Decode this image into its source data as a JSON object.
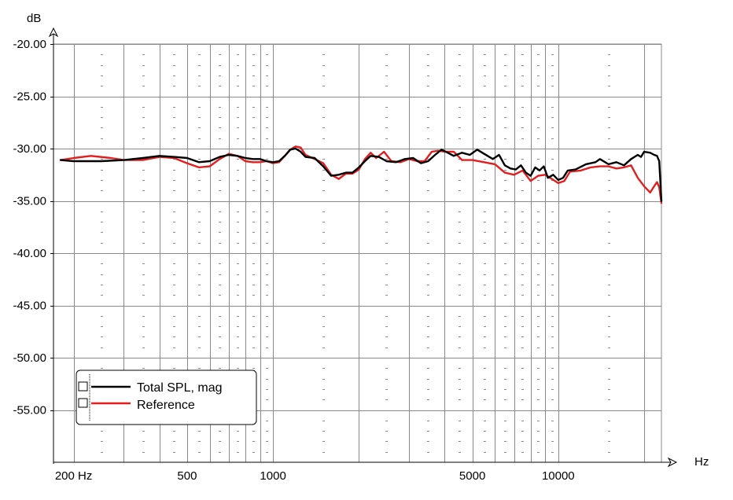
{
  "chart_data": {
    "type": "line",
    "xscale": "log",
    "xlim": [
      170,
      23000
    ],
    "ylim": [
      -60,
      -20
    ],
    "ylabel": "dB",
    "xlabel": "Hz",
    "y_ticks": [
      {
        "value": -20,
        "label": "-20.00"
      },
      {
        "value": -25,
        "label": "-25.00"
      },
      {
        "value": -30,
        "label": "-30.00"
      },
      {
        "value": -35,
        "label": "-35.00"
      },
      {
        "value": -40,
        "label": "-40.00"
      },
      {
        "value": -45,
        "label": "-45.00"
      },
      {
        "value": -50,
        "label": "-50.00"
      },
      {
        "value": -55,
        "label": "-55.00"
      }
    ],
    "x_tick_labels": [
      {
        "value": 200,
        "label": "200 Hz"
      },
      {
        "value": 500,
        "label": "500"
      },
      {
        "value": 1000,
        "label": "1000"
      },
      {
        "value": 5000,
        "label": "5000"
      },
      {
        "value": 10000,
        "label": "10000"
      }
    ],
    "x_gridlines": [
      200,
      300,
      400,
      500,
      600,
      700,
      800,
      900,
      1000,
      2000,
      3000,
      4000,
      5000,
      6000,
      7000,
      8000,
      9000,
      10000,
      20000
    ],
    "grid": true,
    "legend_position": "bottom-left",
    "series": [
      {
        "name": "Total SPL, mag",
        "color": "#000000",
        "points": [
          [
            180,
            -31.1
          ],
          [
            200,
            -31.2
          ],
          [
            250,
            -31.2
          ],
          [
            300,
            -31.1
          ],
          [
            350,
            -30.9
          ],
          [
            400,
            -30.7
          ],
          [
            450,
            -30.8
          ],
          [
            500,
            -30.9
          ],
          [
            550,
            -31.3
          ],
          [
            600,
            -31.2
          ],
          [
            650,
            -30.8
          ],
          [
            700,
            -30.6
          ],
          [
            750,
            -30.7
          ],
          [
            800,
            -30.9
          ],
          [
            850,
            -31.0
          ],
          [
            900,
            -31.0
          ],
          [
            950,
            -31.2
          ],
          [
            1000,
            -31.3
          ],
          [
            1050,
            -31.2
          ],
          [
            1100,
            -30.7
          ],
          [
            1150,
            -30.1
          ],
          [
            1200,
            -30.0
          ],
          [
            1250,
            -30.3
          ],
          [
            1300,
            -30.8
          ],
          [
            1400,
            -30.9
          ],
          [
            1500,
            -31.7
          ],
          [
            1600,
            -32.6
          ],
          [
            1700,
            -32.5
          ],
          [
            1800,
            -32.3
          ],
          [
            1900,
            -32.3
          ],
          [
            2000,
            -31.8
          ],
          [
            2100,
            -31.2
          ],
          [
            2200,
            -30.7
          ],
          [
            2350,
            -30.8
          ],
          [
            2500,
            -31.2
          ],
          [
            2700,
            -31.3
          ],
          [
            2900,
            -31.0
          ],
          [
            3100,
            -30.9
          ],
          [
            3300,
            -31.4
          ],
          [
            3500,
            -31.2
          ],
          [
            3700,
            -30.6
          ],
          [
            3900,
            -30.1
          ],
          [
            4100,
            -30.4
          ],
          [
            4300,
            -30.7
          ],
          [
            4600,
            -30.4
          ],
          [
            4900,
            -30.6
          ],
          [
            5200,
            -30.1
          ],
          [
            5500,
            -30.5
          ],
          [
            5900,
            -31.0
          ],
          [
            6200,
            -30.6
          ],
          [
            6500,
            -31.6
          ],
          [
            6800,
            -31.9
          ],
          [
            7100,
            -32.0
          ],
          [
            7400,
            -31.6
          ],
          [
            7700,
            -32.3
          ],
          [
            8000,
            -32.6
          ],
          [
            8300,
            -31.8
          ],
          [
            8600,
            -32.1
          ],
          [
            8900,
            -31.7
          ],
          [
            9200,
            -32.8
          ],
          [
            9600,
            -32.5
          ],
          [
            10000,
            -33.0
          ],
          [
            10400,
            -32.8
          ],
          [
            10800,
            -32.1
          ],
          [
            11500,
            -32.0
          ],
          [
            12500,
            -31.5
          ],
          [
            13500,
            -31.3
          ],
          [
            14000,
            -31.0
          ],
          [
            15000,
            -31.5
          ],
          [
            16000,
            -31.3
          ],
          [
            17000,
            -31.6
          ],
          [
            18000,
            -31.0
          ],
          [
            19000,
            -30.6
          ],
          [
            19500,
            -30.8
          ],
          [
            20000,
            -30.3
          ],
          [
            21000,
            -30.4
          ],
          [
            21700,
            -30.6
          ],
          [
            22200,
            -30.7
          ],
          [
            22600,
            -31.2
          ],
          [
            23000,
            -35.0
          ]
        ]
      },
      {
        "name": "Reference",
        "color": "#e41e1e",
        "points": [
          [
            180,
            -31.1
          ],
          [
            200,
            -30.9
          ],
          [
            230,
            -30.7
          ],
          [
            270,
            -30.9
          ],
          [
            300,
            -31.1
          ],
          [
            350,
            -31.1
          ],
          [
            400,
            -30.8
          ],
          [
            450,
            -30.9
          ],
          [
            500,
            -31.4
          ],
          [
            550,
            -31.8
          ],
          [
            600,
            -31.7
          ],
          [
            650,
            -31.0
          ],
          [
            700,
            -30.5
          ],
          [
            750,
            -30.7
          ],
          [
            800,
            -31.2
          ],
          [
            850,
            -31.3
          ],
          [
            900,
            -31.3
          ],
          [
            950,
            -31.2
          ],
          [
            1000,
            -31.4
          ],
          [
            1050,
            -31.3
          ],
          [
            1100,
            -30.7
          ],
          [
            1150,
            -30.1
          ],
          [
            1200,
            -29.8
          ],
          [
            1250,
            -29.9
          ],
          [
            1300,
            -30.6
          ],
          [
            1400,
            -31.0
          ],
          [
            1500,
            -31.4
          ],
          [
            1600,
            -32.5
          ],
          [
            1700,
            -32.9
          ],
          [
            1800,
            -32.4
          ],
          [
            1900,
            -32.4
          ],
          [
            2000,
            -32.0
          ],
          [
            2100,
            -31.0
          ],
          [
            2200,
            -30.4
          ],
          [
            2300,
            -30.9
          ],
          [
            2450,
            -30.3
          ],
          [
            2600,
            -31.2
          ],
          [
            2800,
            -31.3
          ],
          [
            3000,
            -31.0
          ],
          [
            3200,
            -31.2
          ],
          [
            3400,
            -31.2
          ],
          [
            3600,
            -30.3
          ],
          [
            3800,
            -30.2
          ],
          [
            4000,
            -30.3
          ],
          [
            4300,
            -30.3
          ],
          [
            4600,
            -31.1
          ],
          [
            5000,
            -31.1
          ],
          [
            5500,
            -31.3
          ],
          [
            6000,
            -31.5
          ],
          [
            6500,
            -32.3
          ],
          [
            7000,
            -32.5
          ],
          [
            7500,
            -32.1
          ],
          [
            8000,
            -33.1
          ],
          [
            8500,
            -32.6
          ],
          [
            9000,
            -32.5
          ],
          [
            9500,
            -32.9
          ],
          [
            10000,
            -33.3
          ],
          [
            10500,
            -33.1
          ],
          [
            11000,
            -32.2
          ],
          [
            12000,
            -32.1
          ],
          [
            13000,
            -31.8
          ],
          [
            14000,
            -31.7
          ],
          [
            15000,
            -31.7
          ],
          [
            16000,
            -31.9
          ],
          [
            17000,
            -31.8
          ],
          [
            18000,
            -31.6
          ],
          [
            19000,
            -32.8
          ],
          [
            20000,
            -33.6
          ],
          [
            21000,
            -34.2
          ],
          [
            21800,
            -33.5
          ],
          [
            22200,
            -33.2
          ],
          [
            22600,
            -33.7
          ],
          [
            23000,
            -35.2
          ]
        ]
      }
    ]
  }
}
